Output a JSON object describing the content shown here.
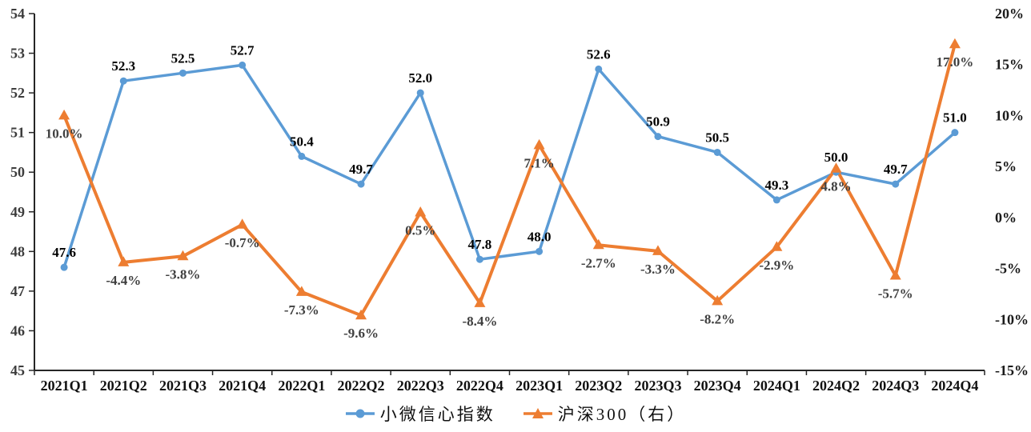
{
  "chart_data": {
    "type": "line",
    "title": "",
    "categories": [
      "2021Q1",
      "2021Q2",
      "2021Q3",
      "2021Q4",
      "2022Q1",
      "2022Q2",
      "2022Q3",
      "2022Q4",
      "2023Q1",
      "2023Q2",
      "2023Q3",
      "2023Q4",
      "2024Q1",
      "2024Q2",
      "2024Q3",
      "2024Q4"
    ],
    "series": [
      {
        "name": "小微信心指数",
        "axis": "left",
        "type": "line",
        "color": "#5B9BD5",
        "marker": "circle",
        "label_color": "#000000",
        "label_position": "above",
        "values": [
          47.6,
          52.3,
          52.5,
          52.7,
          50.4,
          49.7,
          52.0,
          47.8,
          48.0,
          52.6,
          50.9,
          50.5,
          49.3,
          50.0,
          49.7,
          51.0
        ],
        "labels": [
          "47.6",
          "52.3",
          "52.5",
          "52.7",
          "50.4",
          "49.7",
          "52.0",
          "47.8",
          "48.0",
          "52.6",
          "50.9",
          "50.5",
          "49.3",
          "50.0",
          "49.7",
          "51.0"
        ]
      },
      {
        "name": "沪深300（右）",
        "axis": "right",
        "type": "line",
        "color": "#ED7D31",
        "marker": "triangle",
        "label_color": "#404040",
        "label_position": "below",
        "values": [
          10.0,
          -4.4,
          -3.8,
          -0.7,
          -7.3,
          -9.6,
          0.5,
          -8.4,
          7.1,
          -2.7,
          -3.3,
          -8.2,
          -2.9,
          4.8,
          -5.7,
          17.0
        ],
        "labels": [
          "10.0%",
          "-4.4%",
          "-3.8%",
          "-0.7%",
          "-7.3%",
          "-9.6%",
          "0.5%",
          "-8.4%",
          "7.1%",
          "-2.7%",
          "-3.3%",
          "-8.2%",
          "-2.9%",
          "4.8%",
          "-5.7%",
          "17.0%"
        ]
      }
    ],
    "left_axis": {
      "min": 45,
      "max": 54,
      "step": 1,
      "ticks": [
        "45",
        "46",
        "47",
        "48",
        "49",
        "50",
        "51",
        "52",
        "53",
        "54"
      ]
    },
    "right_axis": {
      "min": -15,
      "max": 20,
      "step": 5,
      "ticks": [
        "-15%",
        "-10%",
        "-5%",
        "0%",
        "5%",
        "10%",
        "15%",
        "20%"
      ]
    },
    "grid": false,
    "legend_position": "bottom",
    "xlabel": "",
    "ylabel": ""
  }
}
